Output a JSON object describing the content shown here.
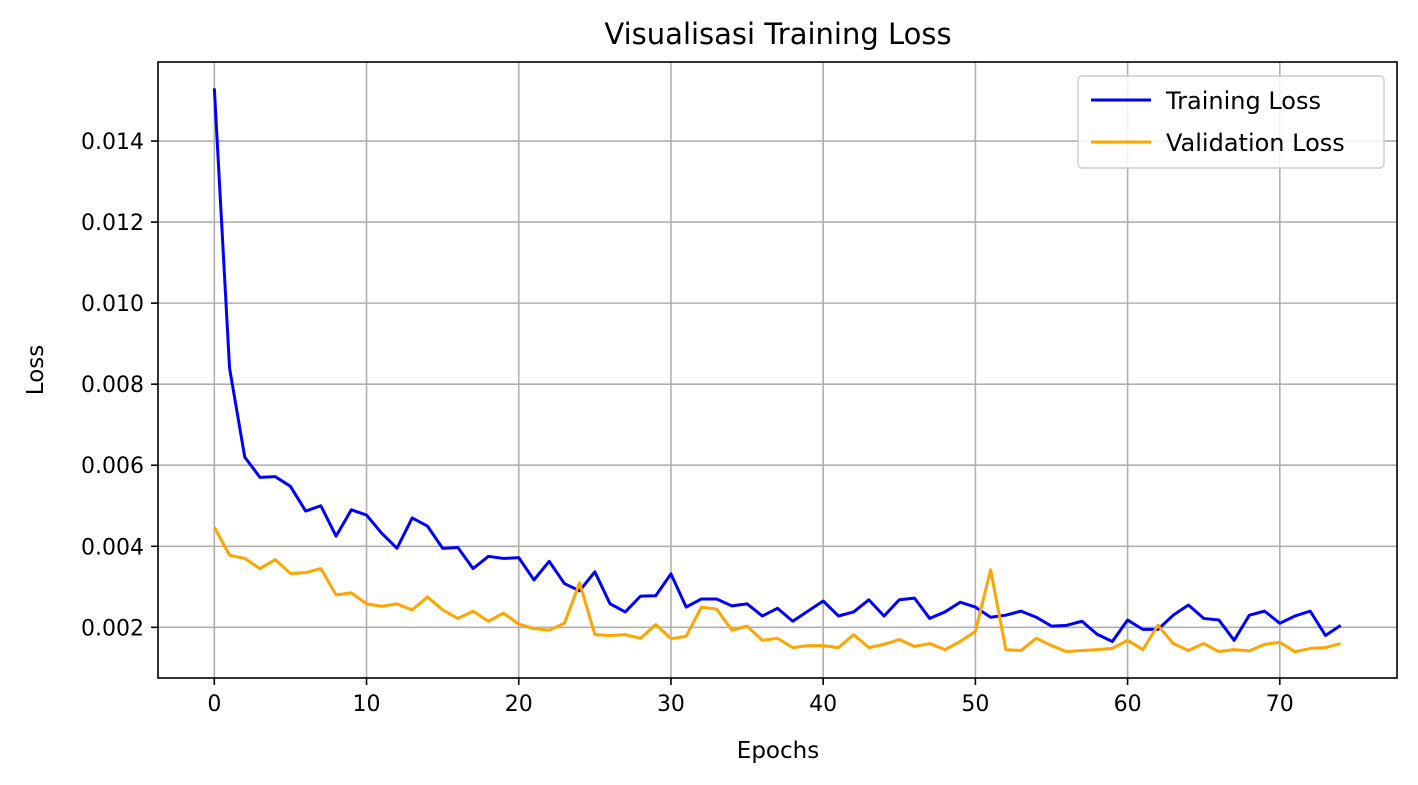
{
  "chart_data": {
    "type": "line",
    "title": "Visualisasi Training Loss",
    "xlabel": "Epochs",
    "ylabel": "Loss",
    "xlim": [
      -3.7,
      77.7
    ],
    "ylim": [
      0.00075,
      0.01595
    ],
    "xticks": [
      0,
      10,
      20,
      30,
      40,
      50,
      60,
      70
    ],
    "xtick_labels": [
      "0",
      "10",
      "20",
      "30",
      "40",
      "50",
      "60",
      "70"
    ],
    "yticks": [
      0.002,
      0.004,
      0.006,
      0.008,
      0.01,
      0.012,
      0.014
    ],
    "ytick_labels": [
      "0.002",
      "0.004",
      "0.006",
      "0.008",
      "0.010",
      "0.012",
      "0.014"
    ],
    "grid": true,
    "legend_position": "top-right",
    "series": [
      {
        "name": "Training Loss",
        "color": "#0000ff",
        "values": [
          0.0153,
          0.0084,
          0.0062,
          0.0057,
          0.00572,
          0.00548,
          0.00487,
          0.005,
          0.00425,
          0.0049,
          0.00477,
          0.00432,
          0.00395,
          0.0047,
          0.0045,
          0.00395,
          0.00397,
          0.00345,
          0.00375,
          0.0037,
          0.00372,
          0.00317,
          0.00363,
          0.00308,
          0.0029,
          0.00337,
          0.00258,
          0.00238,
          0.00277,
          0.00278,
          0.00332,
          0.0025,
          0.0027,
          0.0027,
          0.00253,
          0.00258,
          0.00228,
          0.00247,
          0.00215,
          0.0024,
          0.00265,
          0.00228,
          0.00238,
          0.00268,
          0.00228,
          0.00268,
          0.00272,
          0.00222,
          0.00238,
          0.00262,
          0.0025,
          0.00225,
          0.0023,
          0.0024,
          0.00225,
          0.00203,
          0.00205,
          0.00215,
          0.00183,
          0.00165,
          0.00218,
          0.00195,
          0.00195,
          0.0023,
          0.00255,
          0.00222,
          0.00218,
          0.00168,
          0.0023,
          0.0024,
          0.0021,
          0.00228,
          0.0024,
          0.0018,
          0.00205
        ]
      },
      {
        "name": "Validation Loss",
        "color": "#ffa500",
        "values": [
          0.00447,
          0.00378,
          0.0037,
          0.00345,
          0.00367,
          0.00333,
          0.00335,
          0.00345,
          0.0028,
          0.00285,
          0.00258,
          0.00252,
          0.00258,
          0.00243,
          0.00275,
          0.00243,
          0.00222,
          0.0024,
          0.00215,
          0.00235,
          0.00208,
          0.00197,
          0.00193,
          0.0021,
          0.0031,
          0.00182,
          0.0018,
          0.00182,
          0.00173,
          0.00207,
          0.00172,
          0.00178,
          0.0025,
          0.00245,
          0.00193,
          0.00203,
          0.00168,
          0.00173,
          0.0015,
          0.00155,
          0.00155,
          0.0015,
          0.00182,
          0.0015,
          0.00158,
          0.0017,
          0.00153,
          0.0016,
          0.00145,
          0.00165,
          0.0019,
          0.00342,
          0.00145,
          0.00143,
          0.00173,
          0.00155,
          0.0014,
          0.00143,
          0.00145,
          0.00148,
          0.00168,
          0.00145,
          0.00205,
          0.0016,
          0.00143,
          0.0016,
          0.0014,
          0.00145,
          0.00142,
          0.00158,
          0.00163,
          0.0014,
          0.00148,
          0.0015,
          0.0016
        ]
      }
    ]
  }
}
